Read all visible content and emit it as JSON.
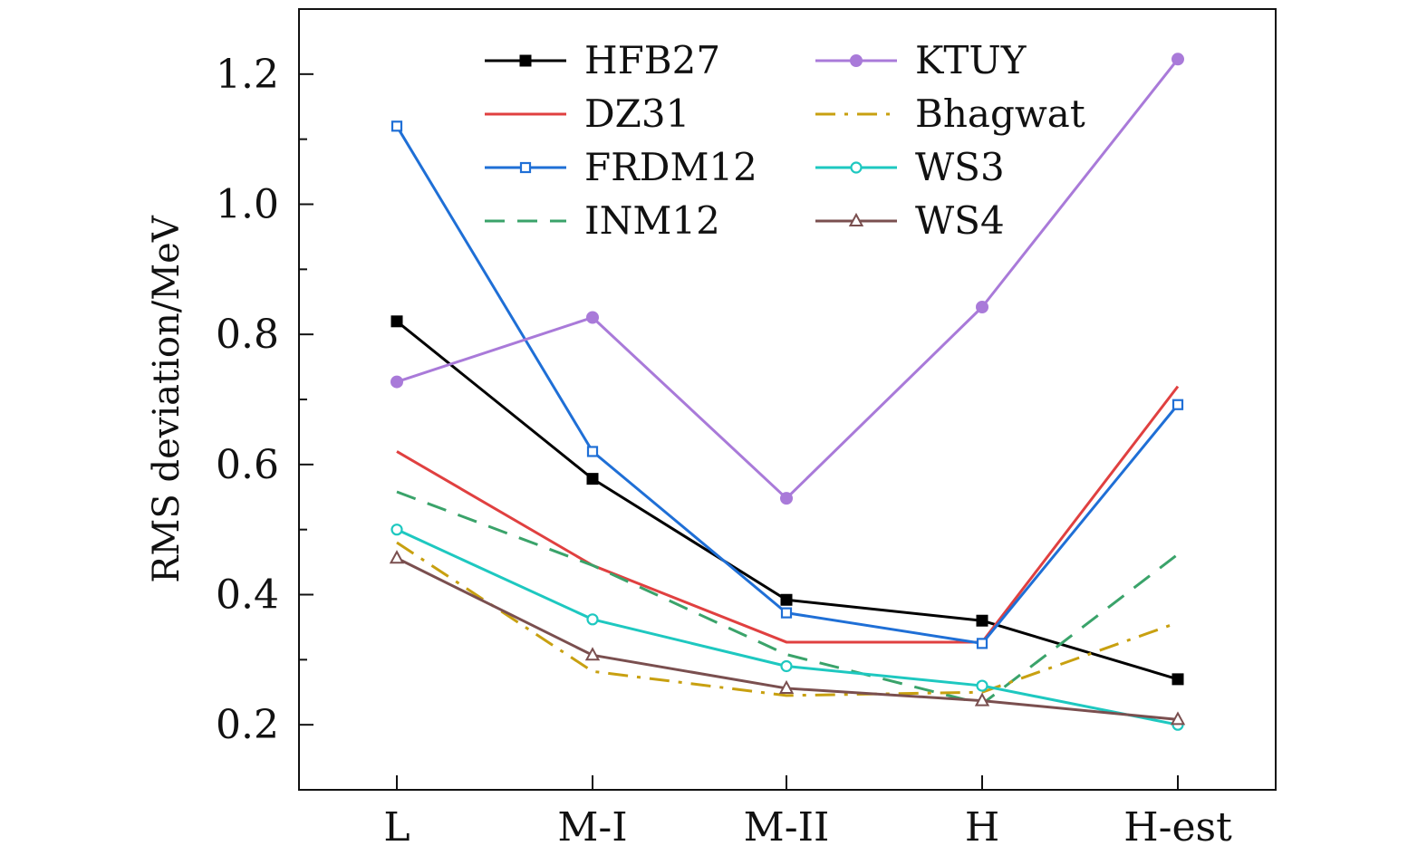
{
  "chart_data": {
    "type": "line",
    "title": "",
    "xlabel": "",
    "ylabel": "RMS deviation/MeV",
    "categories": [
      "L",
      "M-I",
      "M-II",
      "H",
      "H-est"
    ],
    "ylim": [
      0.1,
      1.3
    ],
    "yticks": [
      0.2,
      0.4,
      0.6,
      0.8,
      1.0,
      1.2
    ],
    "ytick_labels": [
      "0.2",
      "0.4",
      "0.6",
      "0.8",
      "1.0",
      "1.2"
    ],
    "legend_position": "top-center",
    "series": [
      {
        "name": "HFB27",
        "values": [
          0.82,
          0.578,
          0.392,
          0.36,
          0.27
        ],
        "color": "#000000",
        "dash": "solid",
        "marker": "square-filled"
      },
      {
        "name": "DZ31",
        "values": [
          0.62,
          0.445,
          0.327,
          0.327,
          0.72
        ],
        "color": "#e04040",
        "dash": "solid",
        "marker": "none"
      },
      {
        "name": "FRDM12",
        "values": [
          1.12,
          0.62,
          0.372,
          0.325,
          0.692
        ],
        "color": "#1f6fd6",
        "dash": "solid",
        "marker": "square-open"
      },
      {
        "name": "INM12",
        "values": [
          0.558,
          0.445,
          0.308,
          0.232,
          0.462
        ],
        "color": "#3aa36a",
        "dash": "dash",
        "marker": "none"
      },
      {
        "name": "KTUY",
        "values": [
          0.727,
          0.826,
          0.548,
          0.842,
          1.223
        ],
        "color": "#a97ad9",
        "dash": "solid",
        "marker": "circle-filled"
      },
      {
        "name": "Bhagwat",
        "values": [
          0.48,
          0.282,
          0.245,
          0.25,
          0.357
        ],
        "color": "#c8a010",
        "dash": "dashdot",
        "marker": "none"
      },
      {
        "name": "WS3",
        "values": [
          0.5,
          0.362,
          0.29,
          0.26,
          0.2
        ],
        "color": "#1ec8c0",
        "dash": "solid",
        "marker": "circle-open"
      },
      {
        "name": "WS4",
        "values": [
          0.456,
          0.307,
          0.256,
          0.237,
          0.208
        ],
        "color": "#7a4f4f",
        "dash": "solid",
        "marker": "triangle-open"
      }
    ]
  }
}
